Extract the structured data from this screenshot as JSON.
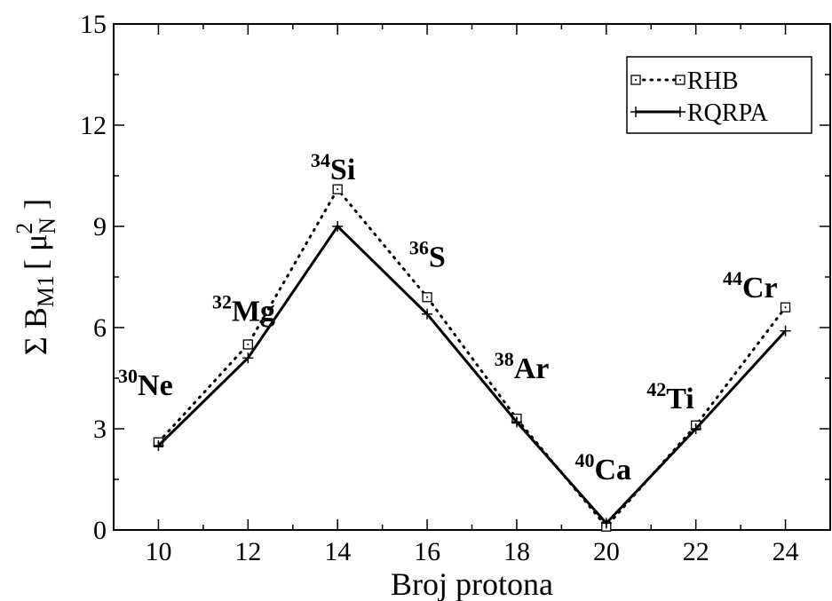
{
  "chart_data": {
    "type": "line",
    "xlabel": "Broj protona",
    "ylabel": {
      "prefix": "Σ B",
      "subscript": "M1",
      "open": "[ μ",
      "unit_sub": "N",
      "unit_sup": "2",
      "close": " ]"
    },
    "xlim": [
      9,
      25
    ],
    "ylim": [
      0,
      15
    ],
    "xticks": [
      10,
      12,
      14,
      16,
      18,
      20,
      22,
      24
    ],
    "yticks": [
      0,
      3,
      6,
      9,
      12,
      15
    ],
    "grid": false,
    "legend_position": "top-right",
    "series": [
      {
        "name": "RHB",
        "style": "dotted",
        "marker": "square",
        "x": [
          10,
          12,
          14,
          16,
          18,
          20,
          22,
          24
        ],
        "y": [
          2.6,
          5.5,
          10.1,
          6.9,
          3.3,
          0.1,
          3.1,
          6.6
        ]
      },
      {
        "name": "RQRPA",
        "style": "solid",
        "marker": "plus",
        "x": [
          10,
          12,
          14,
          16,
          18,
          20,
          22,
          24
        ],
        "y": [
          2.5,
          5.1,
          9.0,
          6.4,
          3.2,
          0.2,
          3.0,
          5.9
        ]
      }
    ],
    "annotations": [
      {
        "mass": "30",
        "symbol": "Ne",
        "x": 9.1,
        "y": 4.0
      },
      {
        "mass": "32",
        "symbol": "Mg",
        "x": 11.2,
        "y": 6.2
      },
      {
        "mass": "34",
        "symbol": "Si",
        "x": 13.4,
        "y": 10.4
      },
      {
        "mass": "36",
        "symbol": "S",
        "x": 15.6,
        "y": 7.8
      },
      {
        "mass": "38",
        "symbol": "Ar",
        "x": 17.5,
        "y": 4.5
      },
      {
        "mass": "40",
        "symbol": "Ca",
        "x": 19.3,
        "y": 1.5
      },
      {
        "mass": "42",
        "symbol": "Ti",
        "x": 20.9,
        "y": 3.6
      },
      {
        "mass": "44",
        "symbol": "Cr",
        "x": 22.6,
        "y": 6.9
      }
    ]
  }
}
